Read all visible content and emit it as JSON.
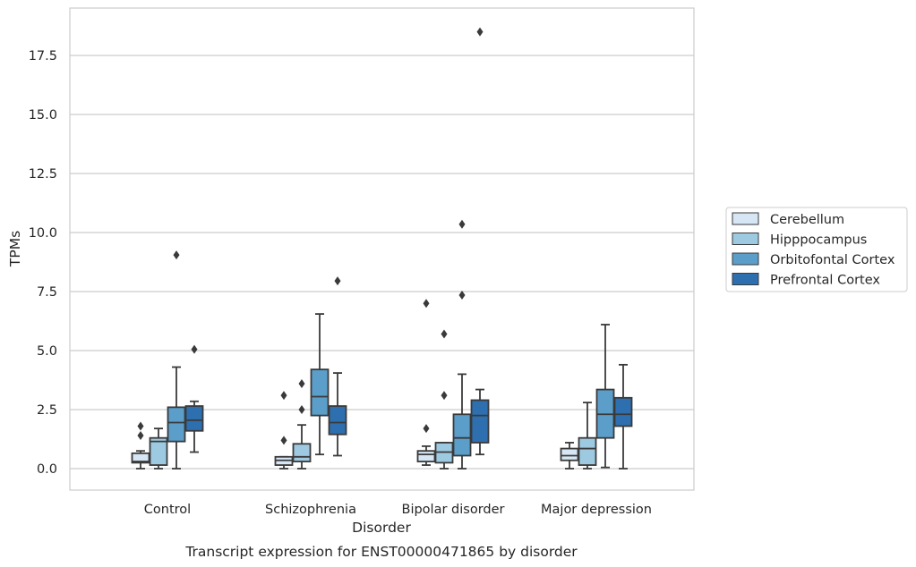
{
  "chart_data": {
    "type": "box",
    "caption": "Transcript expression for ENST00000471865 by disorder",
    "xlabel": "Disorder",
    "ylabel": "TPMs",
    "ylim": [
      -0.9,
      19.4
    ],
    "yticks": [
      "0.0",
      "2.5",
      "5.0",
      "7.5",
      "10.0",
      "12.5",
      "15.0",
      "17.5"
    ],
    "grid": true,
    "legend_position": "right-center",
    "categories": [
      "Control",
      "Schizophrenia",
      "Bipolar disorder",
      "Major depression"
    ],
    "series": [
      {
        "name": "Cerebellum",
        "color": "#d6e6f4",
        "boxes": [
          {
            "whisker_low": 0.0,
            "q1": 0.25,
            "median": 0.3,
            "q3": 0.65,
            "whisker_high": 0.75,
            "outliers": [
              1.4,
              1.8
            ]
          },
          {
            "whisker_low": 0.0,
            "q1": 0.15,
            "median": 0.35,
            "q3": 0.5,
            "whisker_high": 0.5,
            "outliers": [
              1.2,
              3.1
            ]
          },
          {
            "whisker_low": 0.15,
            "q1": 0.3,
            "median": 0.6,
            "q3": 0.75,
            "whisker_high": 0.95,
            "outliers": [
              1.7,
              7.0
            ]
          },
          {
            "whisker_low": 0.0,
            "q1": 0.35,
            "median": 0.55,
            "q3": 0.85,
            "whisker_high": 1.1,
            "outliers": []
          }
        ]
      },
      {
        "name": "Hipppocampus",
        "color": "#9ecae1",
        "boxes": [
          {
            "whisker_low": 0.0,
            "q1": 0.15,
            "median": 1.15,
            "q3": 1.3,
            "whisker_high": 1.7,
            "outliers": []
          },
          {
            "whisker_low": 0.0,
            "q1": 0.3,
            "median": 0.5,
            "q3": 1.05,
            "whisker_high": 1.85,
            "outliers": [
              2.5,
              3.6
            ]
          },
          {
            "whisker_low": 0.0,
            "q1": 0.25,
            "median": 0.7,
            "q3": 1.1,
            "whisker_high": 1.1,
            "outliers": [
              3.1,
              5.7
            ]
          },
          {
            "whisker_low": 0.0,
            "q1": 0.15,
            "median": 0.85,
            "q3": 1.3,
            "whisker_high": 2.8,
            "outliers": []
          }
        ]
      },
      {
        "name": "Orbitofontal Cortex",
        "color": "#5b9ec9",
        "boxes": [
          {
            "whisker_low": 0.0,
            "q1": 1.15,
            "median": 1.95,
            "q3": 2.6,
            "whisker_high": 4.3,
            "outliers": [
              9.05
            ]
          },
          {
            "whisker_low": 0.6,
            "q1": 2.25,
            "median": 3.05,
            "q3": 4.2,
            "whisker_high": 6.55,
            "outliers": []
          },
          {
            "whisker_low": 0.0,
            "q1": 0.55,
            "median": 1.3,
            "q3": 2.3,
            "whisker_high": 4.0,
            "outliers": [
              7.35,
              10.35
            ]
          },
          {
            "whisker_low": 0.05,
            "q1": 1.3,
            "median": 2.3,
            "q3": 3.35,
            "whisker_high": 6.1,
            "outliers": []
          }
        ]
      },
      {
        "name": "Prefrontal Cortex",
        "color": "#2d6faf",
        "boxes": [
          {
            "whisker_low": 0.7,
            "q1": 1.6,
            "median": 2.05,
            "q3": 2.65,
            "whisker_high": 2.85,
            "outliers": [
              5.05
            ]
          },
          {
            "whisker_low": 0.55,
            "q1": 1.45,
            "median": 1.95,
            "q3": 2.65,
            "whisker_high": 4.05,
            "outliers": [
              7.95
            ]
          },
          {
            "whisker_low": 0.6,
            "q1": 1.1,
            "median": 2.25,
            "q3": 2.9,
            "whisker_high": 3.35,
            "outliers": [
              18.5
            ]
          },
          {
            "whisker_low": 0.0,
            "q1": 1.8,
            "median": 2.3,
            "q3": 3.0,
            "whisker_high": 4.4,
            "outliers": []
          }
        ]
      }
    ]
  }
}
